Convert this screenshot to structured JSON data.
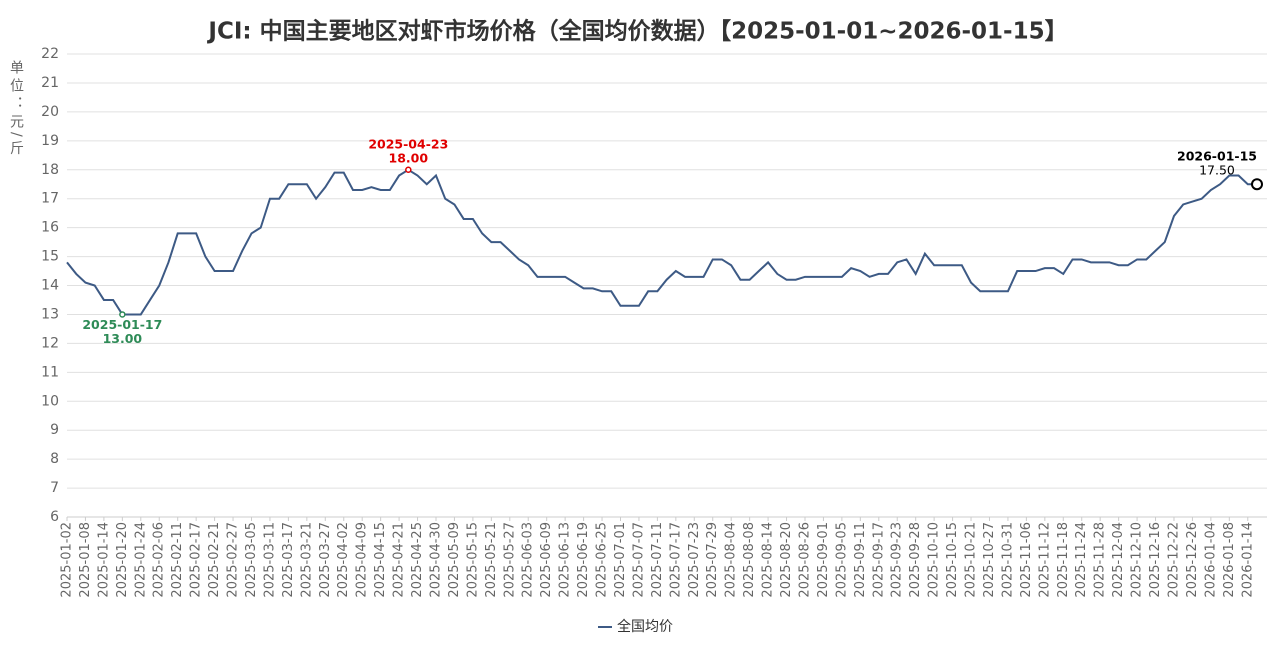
{
  "chart_data": {
    "type": "line",
    "title": "JCI: 中国主要地区对虾市场价格（全国均价数据）【2025-01-01~2026-01-15】",
    "y_label": "单位：元/斤",
    "categories": [
      "2025-01-02",
      null,
      "2025-01-08",
      null,
      "2025-01-14",
      null,
      "2025-01-20",
      null,
      "2025-01-24",
      null,
      "2025-02-06",
      null,
      "2025-02-11",
      null,
      "2025-02-17",
      null,
      "2025-02-21",
      null,
      "2025-02-27",
      null,
      "2025-03-05",
      null,
      "2025-03-11",
      null,
      "2025-03-17",
      null,
      "2025-03-21",
      null,
      "2025-03-27",
      null,
      "2025-04-02",
      null,
      "2025-04-09",
      null,
      "2025-04-15",
      null,
      "2025-04-21",
      null,
      "2025-04-25",
      null,
      "2025-04-30",
      null,
      "2025-05-09",
      null,
      "2025-05-15",
      null,
      "2025-05-21",
      null,
      "2025-05-27",
      null,
      "2025-06-03",
      null,
      "2025-06-09",
      null,
      "2025-06-13",
      null,
      "2025-06-19",
      null,
      "2025-06-25",
      null,
      "2025-07-01",
      null,
      "2025-07-07",
      null,
      "2025-07-11",
      null,
      "2025-07-17",
      null,
      "2025-07-23",
      null,
      "2025-07-29",
      null,
      "2025-08-04",
      null,
      "2025-08-08",
      null,
      "2025-08-14",
      null,
      "2025-08-20",
      null,
      "2025-08-26",
      null,
      "2025-09-01",
      null,
      "2025-09-05",
      null,
      "2025-09-11",
      null,
      "2025-09-17",
      null,
      "2025-09-23",
      null,
      "2025-09-28",
      null,
      "2025-10-10",
      null,
      "2025-10-15",
      null,
      "2025-10-21",
      null,
      "2025-10-27",
      null,
      "2025-10-31",
      null,
      "2025-11-06",
      null,
      "2025-11-12",
      null,
      "2025-11-18",
      null,
      "2025-11-24",
      null,
      "2025-11-28",
      null,
      "2025-12-04",
      null,
      "2025-12-10",
      null,
      "2025-12-16",
      null,
      "2025-12-22",
      null,
      "2025-12-26",
      null,
      "2026-01-04",
      null,
      "2026-01-08",
      null,
      "2026-01-14",
      null
    ],
    "series": [
      {
        "name": "全国均价",
        "color": "#3d5a85",
        "values": [
          14.8,
          14.4,
          14.1,
          14.0,
          13.5,
          13.5,
          13.0,
          13.0,
          13.0,
          13.5,
          14.0,
          14.8,
          15.8,
          15.8,
          15.8,
          15.0,
          14.5,
          14.5,
          14.5,
          15.2,
          15.8,
          16.0,
          17.0,
          17.0,
          17.5,
          17.5,
          17.5,
          17.0,
          17.4,
          17.9,
          17.9,
          17.3,
          17.3,
          17.4,
          17.3,
          17.3,
          17.8,
          18.0,
          17.8,
          17.5,
          17.8,
          17.0,
          16.8,
          16.3,
          16.3,
          15.8,
          15.5,
          15.5,
          15.2,
          14.9,
          14.7,
          14.3,
          14.3,
          14.3,
          14.3,
          14.1,
          13.9,
          13.9,
          13.8,
          13.8,
          13.3,
          13.3,
          13.3,
          13.8,
          13.8,
          14.2,
          14.5,
          14.3,
          14.3,
          14.3,
          14.9,
          14.9,
          14.7,
          14.2,
          14.2,
          14.5,
          14.8,
          14.4,
          14.2,
          14.2,
          14.3,
          14.3,
          14.3,
          14.3,
          14.3,
          14.6,
          14.5,
          14.3,
          14.4,
          14.4,
          14.8,
          14.9,
          14.4,
          15.1,
          14.7,
          14.7,
          14.7,
          14.7,
          14.1,
          13.8,
          13.8,
          13.8,
          13.8,
          14.5,
          14.5,
          14.5,
          14.6,
          14.6,
          14.4,
          14.9,
          14.9,
          14.8,
          14.8,
          14.8,
          14.7,
          14.7,
          14.9,
          14.9,
          15.2,
          15.5,
          16.4,
          16.8,
          16.9,
          17.0,
          17.3,
          17.5,
          17.8,
          17.8,
          17.5,
          17.5
        ]
      }
    ],
    "ylim": [
      6,
      22
    ],
    "yticks": [
      6,
      7,
      8,
      9,
      10,
      11,
      12,
      13,
      14,
      15,
      16,
      17,
      18,
      19,
      20,
      21,
      22
    ],
    "grid": true,
    "annotations": [
      {
        "index": 6,
        "date": "2025-01-17",
        "label": "13.00",
        "color": "#2e8b57",
        "position": "below",
        "marker": "dot"
      },
      {
        "index": 37,
        "date": "2025-04-23",
        "label": "18.00",
        "color": "#e00000",
        "position": "above",
        "marker": "dot"
      },
      {
        "index": 129,
        "date": "2026-01-15",
        "label": "17.50",
        "color": "#000000",
        "position": "above-left",
        "marker": "open"
      }
    ]
  }
}
